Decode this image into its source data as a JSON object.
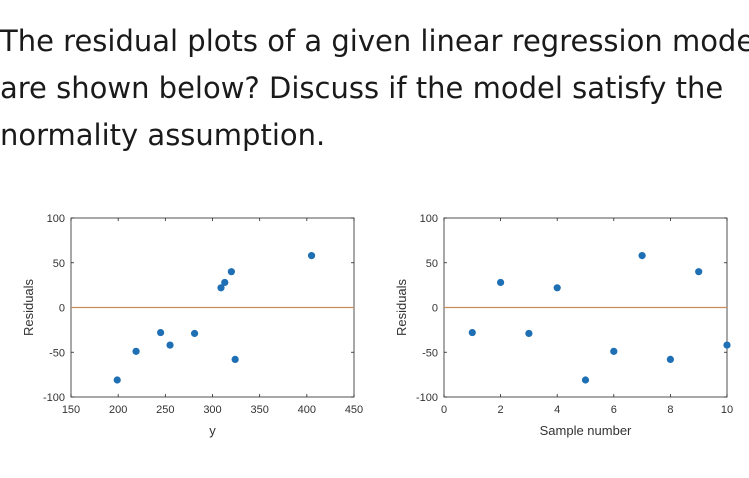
{
  "question": {
    "line1": "The residual plots of a given linear regression model",
    "line2": "are shown below? Discuss if the model satisfy the",
    "line3": "normality assumption."
  },
  "chart_data": [
    {
      "type": "scatter",
      "xlabel": "y",
      "ylabel": "Residuals",
      "xlim": [
        150,
        450
      ],
      "ylim": [
        -100,
        100
      ],
      "xticks": [
        150,
        200,
        250,
        300,
        350,
        400,
        450
      ],
      "yticks": [
        -100,
        -50,
        0,
        50,
        100
      ],
      "reference_line": {
        "y": 0,
        "color": "#c98d5c"
      },
      "point_color": "#1f6fb5",
      "grid": false,
      "points": [
        {
          "x": 199,
          "y": -81
        },
        {
          "x": 219,
          "y": -49
        },
        {
          "x": 245,
          "y": -28
        },
        {
          "x": 255,
          "y": -42
        },
        {
          "x": 281,
          "y": -29
        },
        {
          "x": 309,
          "y": 22
        },
        {
          "x": 313,
          "y": 28
        },
        {
          "x": 320,
          "y": 40
        },
        {
          "x": 324,
          "y": -58
        },
        {
          "x": 405,
          "y": 58
        }
      ]
    },
    {
      "type": "scatter",
      "xlabel": "Sample number",
      "ylabel": "Residuals",
      "xlim": [
        0,
        10
      ],
      "ylim": [
        -100,
        100
      ],
      "xticks": [
        0,
        2,
        4,
        6,
        8,
        10
      ],
      "yticks": [
        -100,
        -50,
        0,
        50,
        100
      ],
      "reference_line": {
        "y": 0,
        "color": "#c98d5c"
      },
      "point_color": "#1f6fb5",
      "grid": false,
      "points": [
        {
          "x": 1,
          "y": -28
        },
        {
          "x": 2,
          "y": 28
        },
        {
          "x": 3,
          "y": -29
        },
        {
          "x": 4,
          "y": 22
        },
        {
          "x": 5,
          "y": -81
        },
        {
          "x": 6,
          "y": -49
        },
        {
          "x": 7,
          "y": 58
        },
        {
          "x": 8,
          "y": -58
        },
        {
          "x": 9,
          "y": 40
        },
        {
          "x": 10,
          "y": -42
        }
      ]
    }
  ]
}
